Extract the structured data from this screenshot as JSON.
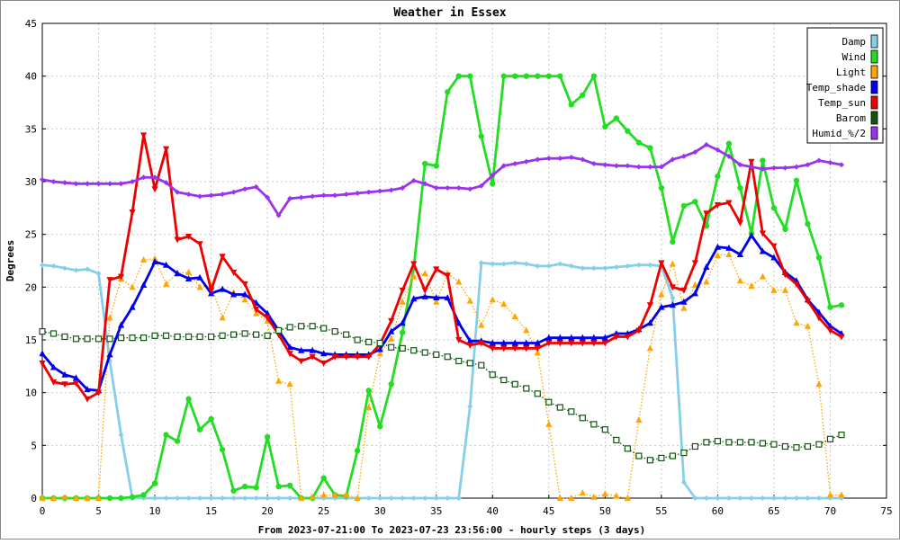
{
  "chart_data": {
    "type": "line",
    "title": "Weather in Essex",
    "xlabel": "From 2023-07-21:00 To 2023-07-23 23:56:00 - hourly steps (3 days)",
    "ylabel": "Degrees",
    "xlim": [
      0,
      75
    ],
    "ylim": [
      0,
      45
    ],
    "x_ticks": [
      0,
      5,
      10,
      15,
      20,
      25,
      30,
      35,
      40,
      45,
      50,
      55,
      60,
      65,
      70,
      75
    ],
    "y_ticks": [
      0,
      5,
      10,
      15,
      20,
      25,
      30,
      35,
      40,
      45
    ],
    "grid": true,
    "legend_position": "top-right",
    "series": [
      {
        "name": "Damp",
        "color": "#87ceeb",
        "marker": "diamond",
        "line": "solid",
        "y": [
          22.1,
          22.0,
          21.8,
          21.6,
          21.7,
          21.3,
          13.0,
          6.0,
          0,
          0,
          0,
          0,
          0,
          0,
          0,
          0,
          0,
          0,
          0,
          0,
          0,
          0,
          0,
          0,
          0,
          0,
          0,
          0,
          0,
          0,
          0,
          0,
          0,
          0,
          0,
          0,
          0,
          0,
          8.7,
          22.3,
          22.2,
          22.2,
          22.3,
          22.2,
          22.0,
          22.0,
          22.2,
          22.0,
          21.8,
          21.8,
          21.8,
          21.9,
          22.0,
          22.1,
          22.1,
          22.0,
          19.0,
          1.5,
          0,
          0,
          0,
          0,
          0,
          0,
          0,
          0,
          0,
          0,
          0,
          0,
          0,
          0
        ]
      },
      {
        "name": "Wind",
        "color": "#22dd22",
        "marker": "circle",
        "line": "solid",
        "y": [
          0,
          0,
          0,
          0,
          0,
          0,
          0,
          0,
          0.1,
          0.3,
          1.4,
          6.0,
          5.4,
          9.4,
          6.5,
          7.5,
          4.6,
          0.7,
          1.1,
          1.0,
          5.8,
          1.1,
          1.2,
          0,
          0,
          1.9,
          0.3,
          0.2,
          4.5,
          10.2,
          6.8,
          10.8,
          15.7,
          21.8,
          31.7,
          31.5,
          38.5,
          40.0,
          40.0,
          34.3,
          29.8,
          40.0,
          40.0,
          40.0,
          40.0,
          40.0,
          40.0,
          37.3,
          38.2,
          40.0,
          35.2,
          36.0,
          34.8,
          33.7,
          33.2,
          29.4,
          24.3,
          27.7,
          28.1,
          25.8,
          30.5,
          33.6,
          29.4,
          25.1,
          32.0,
          27.5,
          25.5,
          30.1,
          26.0,
          22.8,
          18.1,
          18.3
        ]
      },
      {
        "name": "Light",
        "color": "#ffa500",
        "marker": "triangle-up",
        "line": "dotted",
        "y": [
          0,
          0,
          0.1,
          0,
          0,
          0,
          17.1,
          20.8,
          20.0,
          22.6,
          22.7,
          20.3,
          21.3,
          21.4,
          20.0,
          20.2,
          17.1,
          19.5,
          18.8,
          17.5,
          16.8,
          11.1,
          10.8,
          0,
          0.1,
          0.3,
          0.3,
          0.3,
          0,
          8.6,
          13.7,
          15.1,
          18.6,
          21.0,
          21.3,
          18.6,
          21.3,
          20.5,
          18.7,
          16.4,
          18.8,
          18.4,
          17.2,
          15.9,
          13.8,
          7.0,
          0,
          0,
          0.5,
          0.1,
          0.4,
          0.2,
          0,
          7.4,
          14.2,
          19.3,
          22.2,
          18.0,
          20.2,
          20.5,
          23.0,
          23.1,
          20.6,
          20.1,
          21.0,
          19.7,
          19.7,
          16.6,
          16.3,
          10.8,
          0.3,
          0.3
        ]
      },
      {
        "name": "Temp_shade",
        "color": "#0000ee",
        "marker": "triangle-up",
        "line": "solid",
        "y": [
          13.7,
          12.4,
          11.7,
          11.4,
          10.3,
          10.2,
          13.6,
          16.4,
          18.1,
          20.2,
          22.4,
          22.1,
          21.3,
          20.8,
          20.9,
          19.4,
          19.8,
          19.3,
          19.3,
          18.5,
          17.5,
          15.9,
          14.3,
          14.0,
          14.0,
          13.7,
          13.6,
          13.6,
          13.6,
          13.6,
          14.1,
          15.8,
          16.6,
          18.9,
          19.1,
          19.0,
          19.0,
          16.6,
          14.9,
          14.9,
          14.7,
          14.7,
          14.7,
          14.7,
          14.7,
          15.2,
          15.2,
          15.2,
          15.2,
          15.2,
          15.2,
          15.6,
          15.6,
          16.0,
          16.6,
          18.1,
          18.3,
          18.6,
          19.4,
          21.9,
          23.8,
          23.7,
          23.1,
          24.9,
          23.4,
          22.8,
          21.4,
          20.6,
          18.8,
          17.6,
          16.3,
          15.6
        ]
      },
      {
        "name": "Temp_sun",
        "color": "#ee0000",
        "marker": "triangle-down",
        "line": "solid",
        "y": [
          12.8,
          11.0,
          10.8,
          10.9,
          9.4,
          10.0,
          20.7,
          21.0,
          27.1,
          34.4,
          29.3,
          33.1,
          24.5,
          24.8,
          24.1,
          19.7,
          22.9,
          21.4,
          20.3,
          17.9,
          17.1,
          15.5,
          13.7,
          13.0,
          13.4,
          12.8,
          13.4,
          13.4,
          13.4,
          13.4,
          14.6,
          16.8,
          19.7,
          22.2,
          19.7,
          21.7,
          21.1,
          15.0,
          14.5,
          14.7,
          14.2,
          14.2,
          14.2,
          14.2,
          14.2,
          14.7,
          14.7,
          14.7,
          14.7,
          14.7,
          14.7,
          15.3,
          15.3,
          15.9,
          18.3,
          22.3,
          20.0,
          19.7,
          22.3,
          27.0,
          27.8,
          28.0,
          26.1,
          31.9,
          25.1,
          23.9,
          21.2,
          20.3,
          18.7,
          17.1,
          15.9,
          15.3
        ]
      },
      {
        "name": "Barom",
        "color": "#115511",
        "marker": "square-open",
        "line": "dotted",
        "y": [
          15.8,
          15.6,
          15.3,
          15.1,
          15.1,
          15.1,
          15.1,
          15.2,
          15.2,
          15.2,
          15.4,
          15.4,
          15.3,
          15.3,
          15.3,
          15.3,
          15.4,
          15.5,
          15.6,
          15.5,
          15.4,
          15.9,
          16.2,
          16.3,
          16.3,
          16.1,
          15.8,
          15.5,
          15.0,
          14.8,
          14.7,
          14.3,
          14.2,
          14.0,
          13.8,
          13.6,
          13.4,
          13.0,
          12.8,
          12.6,
          11.7,
          11.2,
          10.8,
          10.4,
          9.9,
          9.1,
          8.6,
          8.2,
          7.6,
          7.0,
          6.5,
          5.5,
          4.7,
          4.0,
          3.6,
          3.8,
          4.0,
          4.3,
          4.9,
          5.3,
          5.4,
          5.3,
          5.3,
          5.3,
          5.2,
          5.1,
          4.9,
          4.8,
          4.9,
          5.1,
          5.6,
          6.0
        ]
      },
      {
        "name": "Humid_%/2",
        "color": "#9933ee",
        "marker": "diamond",
        "line": "solid",
        "y": [
          30.2,
          30.0,
          29.9,
          29.8,
          29.8,
          29.8,
          29.8,
          29.8,
          30.0,
          30.4,
          30.4,
          29.9,
          29.0,
          28.8,
          28.6,
          28.7,
          28.8,
          29.0,
          29.3,
          29.5,
          28.5,
          26.8,
          28.4,
          28.5,
          28.6,
          28.7,
          28.7,
          28.8,
          28.9,
          29.0,
          29.1,
          29.2,
          29.4,
          30.1,
          29.8,
          29.4,
          29.4,
          29.4,
          29.3,
          29.6,
          30.6,
          31.5,
          31.7,
          31.9,
          32.1,
          32.2,
          32.2,
          32.3,
          32.1,
          31.7,
          31.6,
          31.5,
          31.5,
          31.4,
          31.4,
          31.4,
          32.1,
          32.4,
          32.8,
          33.5,
          33.0,
          32.4,
          31.6,
          31.4,
          31.2,
          31.3,
          31.3,
          31.4,
          31.6,
          32.0,
          31.8,
          31.6
        ]
      }
    ]
  }
}
